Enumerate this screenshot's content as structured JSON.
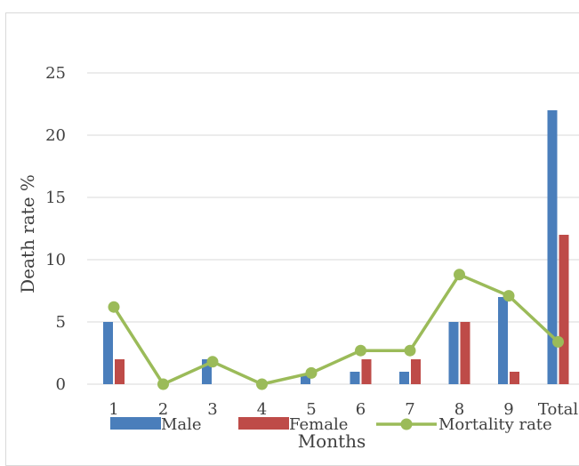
{
  "chart_data": {
    "type": "bar",
    "categories": [
      "1",
      "2",
      "3",
      "4",
      "5",
      "6",
      "7",
      "8",
      "9",
      "Total"
    ],
    "series": [
      {
        "name": "Male",
        "type": "bar",
        "color": "#4a7ebb",
        "values": [
          5,
          0,
          2,
          0,
          0.7,
          1,
          1,
          5,
          7,
          22
        ]
      },
      {
        "name": "Female",
        "type": "bar",
        "color": "#be4b48",
        "values": [
          2,
          0,
          0,
          0,
          0,
          2,
          2,
          5,
          1,
          12
        ]
      },
      {
        "name": "Mortality rate",
        "type": "line",
        "color": "#9bbb59",
        "values": [
          6.2,
          0,
          1.8,
          0,
          0.9,
          2.7,
          2.7,
          8.8,
          7.1,
          3.4
        ]
      }
    ],
    "xlabel": "Months",
    "ylabel": "Death rate %",
    "ylim": [
      0,
      25
    ],
    "yticks": [
      0,
      5,
      10,
      15,
      20,
      25
    ],
    "grid": true,
    "legend": "bottom"
  }
}
